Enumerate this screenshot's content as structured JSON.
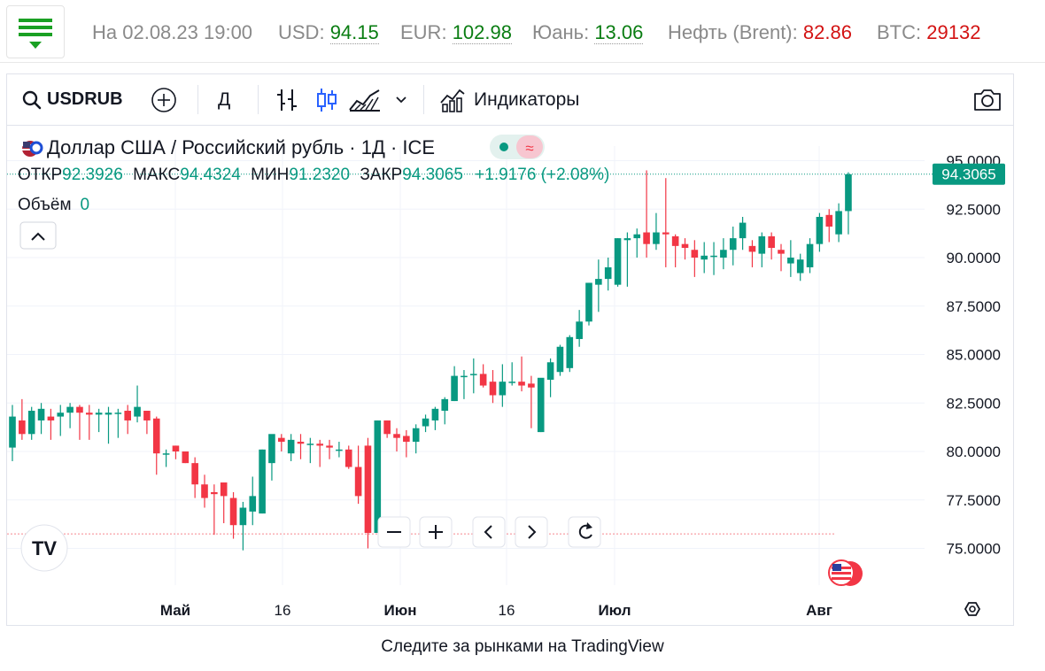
{
  "header": {
    "date": "На 02.08.23 19:00",
    "tickers": [
      {
        "label": "USD:",
        "value": "94.15",
        "color": "#0a7d12"
      },
      {
        "label": "EUR:",
        "value": "102.98",
        "color": "#0a7d12"
      },
      {
        "label": "Юань:",
        "value": "13.06",
        "color": "#0a7d12"
      },
      {
        "label": "Нефть (Brent):",
        "value": "82.86",
        "color": "#d31313"
      },
      {
        "label": "BTC:",
        "value": "29132",
        "color": "#d31313"
      }
    ]
  },
  "toolbar": {
    "symbol": "USDRUB",
    "interval": "Д",
    "indicators_label": "Индикаторы",
    "icons": [
      "search-icon",
      "add-compare-icon",
      "bars-style-icon",
      "candles-style-icon",
      "area-style-icon",
      "chevron-down-icon",
      "indicators-icon",
      "camera-icon"
    ]
  },
  "legend": {
    "title": "Доллар США / Российский рубль · 1Д · ICE",
    "ohlc": [
      {
        "k": "ОТКР",
        "v": "92.3926"
      },
      {
        "k": "МАКС",
        "v": "94.4324"
      },
      {
        "k": "МИН",
        "v": "91.2320"
      },
      {
        "k": "ЗАКР",
        "v": "94.3065"
      }
    ],
    "change": "+1.9176 (+2.08%)",
    "volume_label": "Объём",
    "volume_value": "0"
  },
  "price_tag": "94.3065",
  "zoom_controls": [
    "zoom-out",
    "zoom-in",
    "scroll-left",
    "scroll-right",
    "reset"
  ],
  "footer_text": "Следите за рынками на TradingView",
  "colors": {
    "up": "#089981",
    "down": "#f23645",
    "accent": "#089981"
  },
  "chart_data": {
    "type": "candlestick",
    "y_ticks": [
      "95.0000",
      "92.5000",
      "90.0000",
      "87.5000",
      "85.0000",
      "82.5000",
      "80.0000",
      "77.5000",
      "75.0000"
    ],
    "ylim": [
      72.4,
      96.0
    ],
    "x_ticks": [
      "Май",
      "16",
      "Июн",
      "16",
      "Июл",
      "Авг"
    ],
    "last_close": 94.3065,
    "previous_close": 75.75,
    "candles": [
      {
        "o": 80.2,
        "h": 82.4,
        "l": 79.5,
        "c": 81.8
      },
      {
        "o": 81.6,
        "h": 82.7,
        "l": 80.6,
        "c": 80.9
      },
      {
        "o": 80.9,
        "h": 82.3,
        "l": 80.6,
        "c": 82.1
      },
      {
        "o": 81.6,
        "h": 82.5,
        "l": 80.9,
        "c": 82.2
      },
      {
        "o": 81.8,
        "h": 82.2,
        "l": 80.6,
        "c": 81.6
      },
      {
        "o": 81.8,
        "h": 82.4,
        "l": 80.8,
        "c": 82.0
      },
      {
        "o": 82.0,
        "h": 82.5,
        "l": 81.2,
        "c": 82.3
      },
      {
        "o": 82.3,
        "h": 82.4,
        "l": 80.6,
        "c": 82.0
      },
      {
        "o": 82.0,
        "h": 82.4,
        "l": 80.6,
        "c": 81.9
      },
      {
        "o": 81.9,
        "h": 82.2,
        "l": 81.0,
        "c": 82.0
      },
      {
        "o": 81.9,
        "h": 82.3,
        "l": 80.4,
        "c": 82.0
      },
      {
        "o": 82.0,
        "h": 82.2,
        "l": 80.7,
        "c": 82.0
      },
      {
        "o": 82.1,
        "h": 82.4,
        "l": 80.9,
        "c": 81.6
      },
      {
        "o": 81.8,
        "h": 83.4,
        "l": 81.5,
        "c": 82.3
      },
      {
        "o": 82.1,
        "h": 82.1,
        "l": 80.9,
        "c": 81.6
      },
      {
        "o": 81.7,
        "h": 81.8,
        "l": 78.8,
        "c": 79.9
      },
      {
        "o": 79.9,
        "h": 80.1,
        "l": 79.2,
        "c": 79.9
      },
      {
        "o": 80.3,
        "h": 80.3,
        "l": 79.6,
        "c": 80.0
      },
      {
        "o": 80.0,
        "h": 80.0,
        "l": 79.4,
        "c": 79.4
      },
      {
        "o": 79.4,
        "h": 79.7,
        "l": 77.6,
        "c": 78.3
      },
      {
        "o": 78.3,
        "h": 78.8,
        "l": 77.1,
        "c": 77.6
      },
      {
        "o": 77.9,
        "h": 78.3,
        "l": 75.7,
        "c": 77.8
      },
      {
        "o": 78.4,
        "h": 78.4,
        "l": 76.3,
        "c": 77.7
      },
      {
        "o": 77.6,
        "h": 77.9,
        "l": 75.5,
        "c": 76.2
      },
      {
        "o": 76.2,
        "h": 77.4,
        "l": 74.9,
        "c": 77.1
      },
      {
        "o": 76.9,
        "h": 78.7,
        "l": 76.2,
        "c": 77.7
      },
      {
        "o": 76.8,
        "h": 80.1,
        "l": 76.8,
        "c": 80.1
      },
      {
        "o": 79.4,
        "h": 80.8,
        "l": 78.5,
        "c": 80.9
      },
      {
        "o": 80.7,
        "h": 80.9,
        "l": 80.0,
        "c": 80.5
      },
      {
        "o": 79.9,
        "h": 80.9,
        "l": 79.5,
        "c": 80.6
      },
      {
        "o": 80.5,
        "h": 80.9,
        "l": 79.6,
        "c": 80.4
      },
      {
        "o": 80.4,
        "h": 80.7,
        "l": 79.4,
        "c": 80.4
      },
      {
        "o": 80.4,
        "h": 80.6,
        "l": 79.2,
        "c": 80.3
      },
      {
        "o": 80.3,
        "h": 80.6,
        "l": 79.6,
        "c": 80.2
      },
      {
        "o": 80.1,
        "h": 80.5,
        "l": 79.7,
        "c": 80.1
      },
      {
        "o": 80.1,
        "h": 80.3,
        "l": 79.1,
        "c": 79.2
      },
      {
        "o": 79.2,
        "h": 80.3,
        "l": 77.3,
        "c": 77.7
      },
      {
        "o": 80.3,
        "h": 80.7,
        "l": 75.0,
        "c": 75.8
      },
      {
        "o": 75.8,
        "h": 81.6,
        "l": 75.8,
        "c": 81.6
      },
      {
        "o": 81.6,
        "h": 81.6,
        "l": 80.7,
        "c": 80.9
      },
      {
        "o": 80.9,
        "h": 81.2,
        "l": 80.0,
        "c": 80.7
      },
      {
        "o": 80.8,
        "h": 81.1,
        "l": 79.7,
        "c": 80.5
      },
      {
        "o": 80.5,
        "h": 81.4,
        "l": 79.9,
        "c": 81.2
      },
      {
        "o": 81.3,
        "h": 81.9,
        "l": 81.0,
        "c": 81.7
      },
      {
        "o": 81.6,
        "h": 82.3,
        "l": 81.1,
        "c": 82.2
      },
      {
        "o": 82.1,
        "h": 82.8,
        "l": 81.4,
        "c": 82.7
      },
      {
        "o": 82.6,
        "h": 84.4,
        "l": 82.6,
        "c": 83.9
      },
      {
        "o": 83.9,
        "h": 84.2,
        "l": 82.7,
        "c": 83.9
      },
      {
        "o": 84.0,
        "h": 84.8,
        "l": 83.0,
        "c": 84.0
      },
      {
        "o": 84.0,
        "h": 84.5,
        "l": 83.3,
        "c": 83.4
      },
      {
        "o": 83.6,
        "h": 84.2,
        "l": 82.5,
        "c": 82.9
      },
      {
        "o": 82.9,
        "h": 84.5,
        "l": 82.3,
        "c": 83.6
      },
      {
        "o": 83.6,
        "h": 84.6,
        "l": 83.4,
        "c": 83.6
      },
      {
        "o": 83.6,
        "h": 84.9,
        "l": 83.1,
        "c": 83.4
      },
      {
        "o": 83.5,
        "h": 83.9,
        "l": 81.2,
        "c": 83.3
      },
      {
        "o": 81.0,
        "h": 83.7,
        "l": 81.0,
        "c": 83.8
      },
      {
        "o": 83.7,
        "h": 84.8,
        "l": 82.8,
        "c": 84.6
      },
      {
        "o": 84.1,
        "h": 85.5,
        "l": 83.9,
        "c": 85.4
      },
      {
        "o": 84.3,
        "h": 86.0,
        "l": 84.1,
        "c": 85.9
      },
      {
        "o": 85.8,
        "h": 87.3,
        "l": 85.4,
        "c": 86.7
      },
      {
        "o": 86.7,
        "h": 88.7,
        "l": 86.5,
        "c": 88.7
      },
      {
        "o": 88.6,
        "h": 89.9,
        "l": 87.2,
        "c": 88.9
      },
      {
        "o": 88.9,
        "h": 90.0,
        "l": 88.3,
        "c": 89.5
      },
      {
        "o": 88.6,
        "h": 91.0,
        "l": 88.5,
        "c": 91.0
      },
      {
        "o": 90.9,
        "h": 91.3,
        "l": 88.5,
        "c": 91.0
      },
      {
        "o": 91.0,
        "h": 91.5,
        "l": 90.0,
        "c": 91.2
      },
      {
        "o": 91.3,
        "h": 94.5,
        "l": 90.0,
        "c": 90.7
      },
      {
        "o": 90.7,
        "h": 92.3,
        "l": 90.4,
        "c": 91.3
      },
      {
        "o": 91.3,
        "h": 94.1,
        "l": 89.5,
        "c": 91.2
      },
      {
        "o": 91.1,
        "h": 91.2,
        "l": 89.5,
        "c": 90.6
      },
      {
        "o": 90.7,
        "h": 91.0,
        "l": 89.9,
        "c": 90.5
      },
      {
        "o": 90.4,
        "h": 90.9,
        "l": 89.0,
        "c": 90.0
      },
      {
        "o": 89.9,
        "h": 90.8,
        "l": 89.2,
        "c": 90.1
      },
      {
        "o": 90.1,
        "h": 90.8,
        "l": 89.1,
        "c": 90.1
      },
      {
        "o": 90.0,
        "h": 91.0,
        "l": 89.4,
        "c": 90.4
      },
      {
        "o": 90.4,
        "h": 91.6,
        "l": 89.6,
        "c": 91.0
      },
      {
        "o": 91.0,
        "h": 92.1,
        "l": 90.4,
        "c": 91.8
      },
      {
        "o": 90.6,
        "h": 90.9,
        "l": 89.5,
        "c": 90.3
      },
      {
        "o": 90.2,
        "h": 91.3,
        "l": 89.5,
        "c": 91.1
      },
      {
        "o": 91.1,
        "h": 91.3,
        "l": 89.9,
        "c": 90.5
      },
      {
        "o": 90.4,
        "h": 90.7,
        "l": 89.3,
        "c": 90.2
      },
      {
        "o": 89.7,
        "h": 90.9,
        "l": 89.0,
        "c": 90.0
      },
      {
        "o": 89.2,
        "h": 90.2,
        "l": 88.8,
        "c": 89.9
      },
      {
        "o": 89.5,
        "h": 91.0,
        "l": 89.2,
        "c": 90.7
      },
      {
        "o": 90.7,
        "h": 92.3,
        "l": 90.3,
        "c": 92.1
      },
      {
        "o": 92.2,
        "h": 92.5,
        "l": 90.8,
        "c": 91.6
      },
      {
        "o": 91.2,
        "h": 92.8,
        "l": 90.8,
        "c": 92.4
      },
      {
        "o": 92.4,
        "h": 94.4,
        "l": 91.2,
        "c": 94.3
      }
    ]
  }
}
